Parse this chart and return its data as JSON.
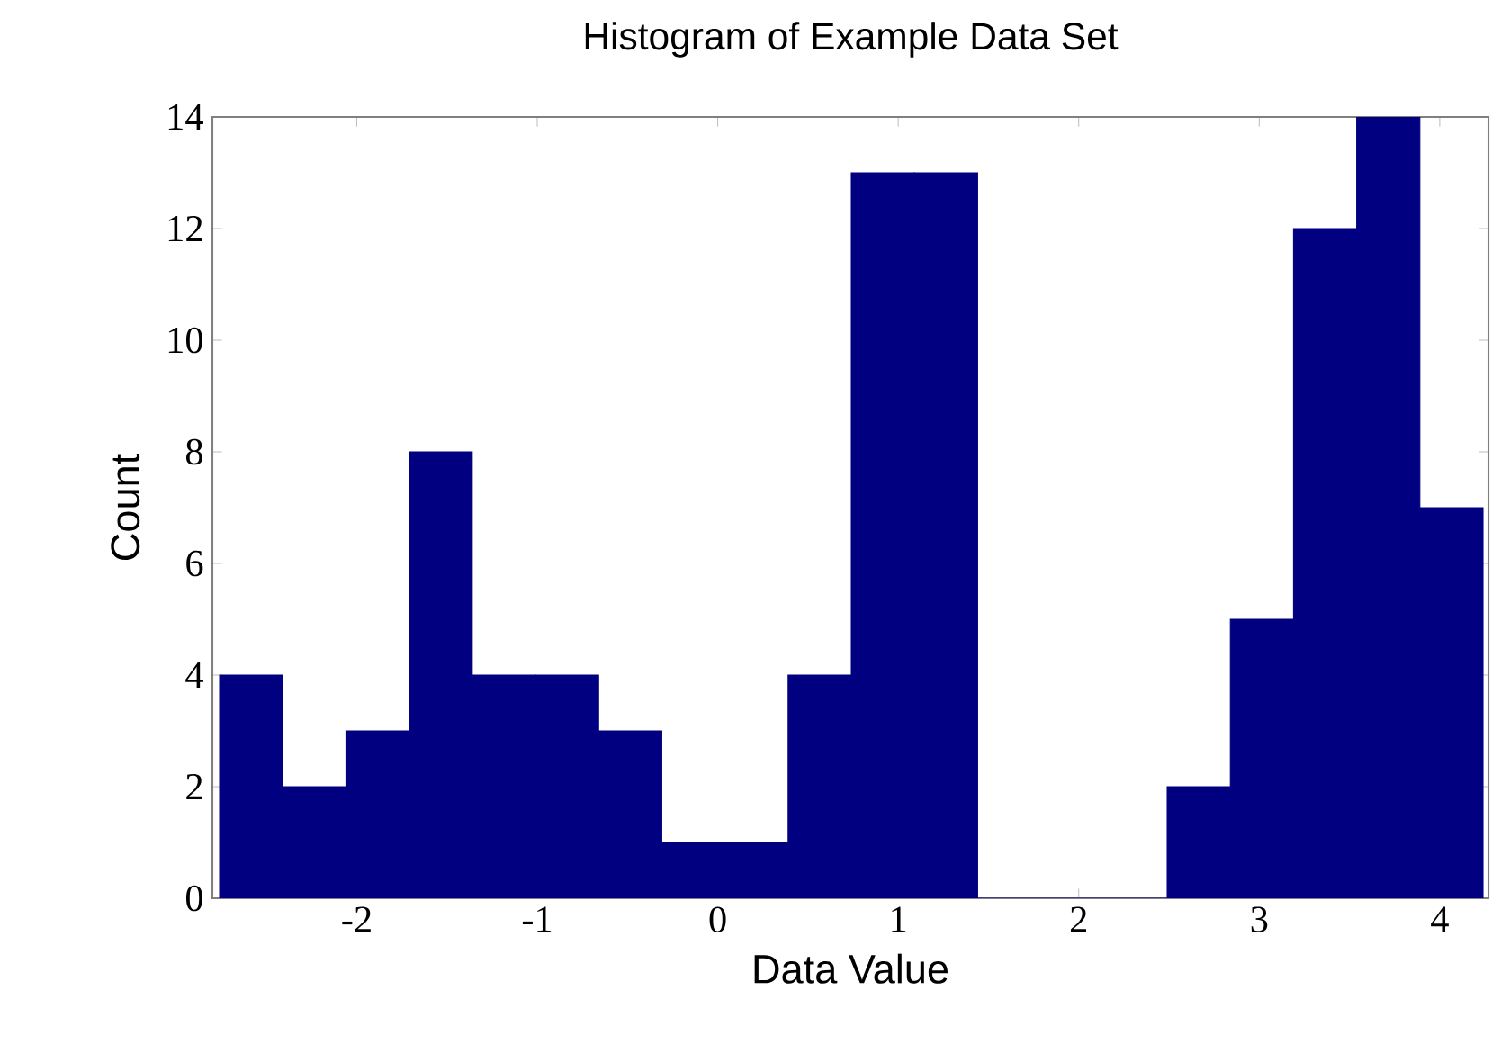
{
  "chart_data": {
    "type": "histogram",
    "title": "Histogram of Example Data Set",
    "xlabel": "Data Value",
    "ylabel": "Count",
    "bins": [
      -2.76,
      -2.41,
      -2.06,
      -1.71,
      -1.36,
      -1.01,
      -0.66,
      -0.31,
      0.04,
      0.39,
      0.74,
      1.09,
      1.44,
      1.79,
      2.14,
      2.49,
      2.84,
      3.19,
      3.54,
      3.89,
      4.24
    ],
    "values": [
      4,
      2,
      3,
      8,
      4,
      4,
      3,
      1,
      1,
      4,
      13,
      13,
      0,
      0,
      0,
      2,
      5,
      12,
      14,
      7
    ],
    "color": "#000080",
    "xlim": [
      -2.8,
      4.27
    ],
    "ylim": [
      0,
      14
    ],
    "xticks": [
      -2,
      -1,
      0,
      1,
      2,
      3,
      4
    ],
    "yticks": [
      0,
      2,
      4,
      6,
      8,
      10,
      12,
      14
    ]
  }
}
